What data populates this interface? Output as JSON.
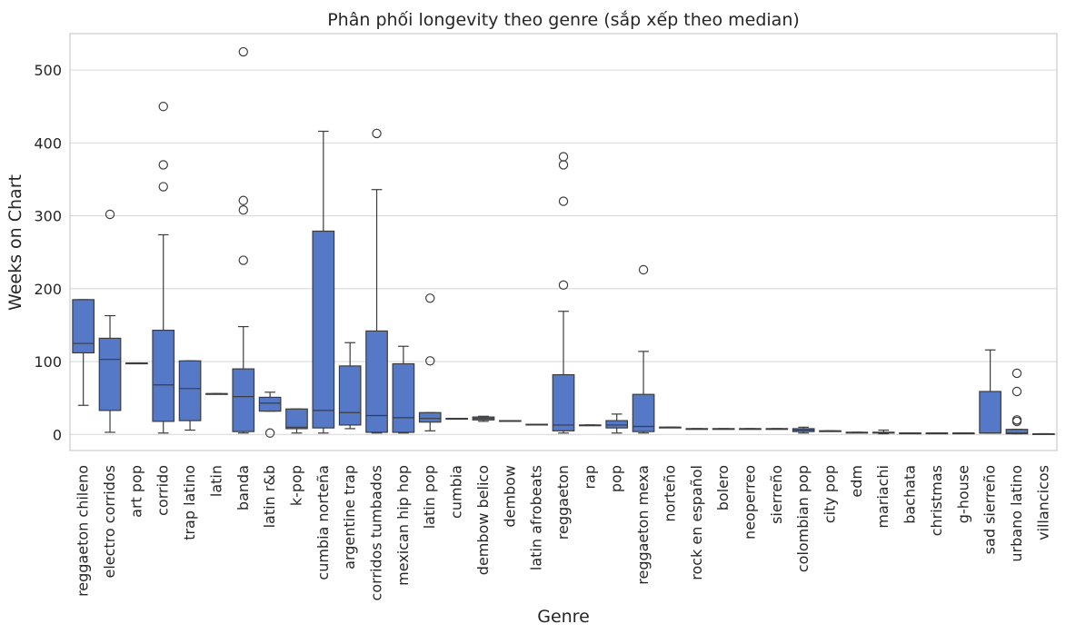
{
  "chart_data": {
    "type": "box",
    "title": "Phân phối longevity theo genre (sắp xếp theo median)",
    "xlabel": "Genre",
    "ylabel": "Weeks on Chart",
    "ylim": [
      -22,
      550
    ],
    "yticks": [
      0,
      100,
      200,
      300,
      400,
      500
    ],
    "grid": "horizontal",
    "box_color": "#5579c6",
    "line_color": "#3c3c3c",
    "categories": [
      "reggaeton chileno",
      "electro corridos",
      "art pop",
      "corrido",
      "trap latino",
      "latin",
      "banda",
      "latin r&b",
      "k-pop",
      "cumbia norteña",
      "argentine trap",
      "corridos tumbados",
      "mexican hip hop",
      "latin pop",
      "cumbia",
      "dembow belico",
      "dembow",
      "latin afrobeats",
      "reggaeton",
      "rap",
      "pop",
      "reggaeton mexa",
      "norteño",
      "rock en español",
      "bolero",
      "neoperreo",
      "sierreño",
      "colombian pop",
      "city pop",
      "edm",
      "mariachi",
      "bachata",
      "christmas",
      "g-house",
      "sad sierreño",
      "urbano latino",
      "villancicos"
    ],
    "boxes": [
      {
        "whislo": 40,
        "q1": 112,
        "med": 125,
        "q3": 185,
        "whishi": 185,
        "fliers": []
      },
      {
        "whislo": 3,
        "q1": 33,
        "med": 103,
        "q3": 132,
        "whishi": 163,
        "fliers": [
          302
        ]
      },
      {
        "whislo": 98,
        "q1": 98,
        "med": 98,
        "q3": 98,
        "whishi": 98,
        "fliers": []
      },
      {
        "whislo": 2,
        "q1": 18,
        "med": 68,
        "q3": 143,
        "whishi": 274,
        "fliers": [
          340,
          370,
          450
        ]
      },
      {
        "whislo": 6,
        "q1": 19,
        "med": 63,
        "q3": 101,
        "whishi": 101,
        "fliers": []
      },
      {
        "whislo": 56,
        "q1": 56,
        "med": 56,
        "q3": 56,
        "whishi": 56,
        "fliers": []
      },
      {
        "whislo": 2,
        "q1": 4,
        "med": 52,
        "q3": 90,
        "whishi": 148,
        "fliers": [
          239,
          308,
          321,
          525
        ]
      },
      {
        "whislo": 32,
        "q1": 32,
        "med": 43,
        "q3": 51,
        "whishi": 58,
        "fliers": [
          2
        ]
      },
      {
        "whislo": 2,
        "q1": 8,
        "med": 10,
        "q3": 35,
        "whishi": 35,
        "fliers": []
      },
      {
        "whislo": 2,
        "q1": 9,
        "med": 33,
        "q3": 279,
        "whishi": 416,
        "fliers": []
      },
      {
        "whislo": 8,
        "q1": 13,
        "med": 30,
        "q3": 94,
        "whishi": 126,
        "fliers": []
      },
      {
        "whislo": 2,
        "q1": 3,
        "med": 26,
        "q3": 142,
        "whishi": 336,
        "fliers": [
          413
        ]
      },
      {
        "whislo": 2,
        "q1": 3,
        "med": 23,
        "q3": 97,
        "whishi": 121,
        "fliers": []
      },
      {
        "whislo": 5,
        "q1": 17,
        "med": 22,
        "q3": 30,
        "whishi": 30,
        "fliers": [
          101,
          187
        ]
      },
      {
        "whislo": 22,
        "q1": 22,
        "med": 22,
        "q3": 22,
        "whishi": 22,
        "fliers": []
      },
      {
        "whislo": 18,
        "q1": 20,
        "med": 22,
        "q3": 24,
        "whishi": 25,
        "fliers": []
      },
      {
        "whislo": 19,
        "q1": 19,
        "med": 19,
        "q3": 19,
        "whishi": 19,
        "fliers": []
      },
      {
        "whislo": 14,
        "q1": 14,
        "med": 14,
        "q3": 14,
        "whishi": 14,
        "fliers": []
      },
      {
        "whislo": 2,
        "q1": 5,
        "med": 13,
        "q3": 82,
        "whishi": 169,
        "fliers": [
          205,
          320,
          370,
          381
        ]
      },
      {
        "whislo": 13,
        "q1": 13,
        "med": 13,
        "q3": 13,
        "whishi": 13,
        "fliers": []
      },
      {
        "whislo": 2,
        "q1": 9,
        "med": 13,
        "q3": 19,
        "whishi": 28,
        "fliers": []
      },
      {
        "whislo": 2,
        "q1": 4,
        "med": 11,
        "q3": 55,
        "whishi": 114,
        "fliers": [
          226
        ]
      },
      {
        "whislo": 10,
        "q1": 10,
        "med": 10,
        "q3": 10,
        "whishi": 10,
        "fliers": []
      },
      {
        "whislo": 8,
        "q1": 8,
        "med": 8,
        "q3": 8,
        "whishi": 8,
        "fliers": []
      },
      {
        "whislo": 8,
        "q1": 8,
        "med": 8,
        "q3": 8,
        "whishi": 8,
        "fliers": []
      },
      {
        "whislo": 8,
        "q1": 8,
        "med": 8,
        "q3": 8,
        "whishi": 8,
        "fliers": []
      },
      {
        "whislo": 8,
        "q1": 8,
        "med": 8,
        "q3": 8,
        "whishi": 8,
        "fliers": []
      },
      {
        "whislo": 2,
        "q1": 4,
        "med": 6,
        "q3": 8,
        "whishi": 10,
        "fliers": []
      },
      {
        "whislo": 5,
        "q1": 5,
        "med": 5,
        "q3": 5,
        "whishi": 5,
        "fliers": []
      },
      {
        "whislo": 3,
        "q1": 3,
        "med": 3,
        "q3": 3,
        "whishi": 3,
        "fliers": []
      },
      {
        "whislo": 1,
        "q1": 2,
        "med": 3,
        "q3": 3,
        "whishi": 6,
        "fliers": []
      },
      {
        "whislo": 2,
        "q1": 2,
        "med": 2,
        "q3": 2,
        "whishi": 2,
        "fliers": []
      },
      {
        "whislo": 2,
        "q1": 2,
        "med": 2,
        "q3": 2,
        "whishi": 2,
        "fliers": []
      },
      {
        "whislo": 2,
        "q1": 2,
        "med": 2,
        "q3": 2,
        "whishi": 2,
        "fliers": []
      },
      {
        "whislo": 2,
        "q1": 2,
        "med": 2,
        "q3": 59,
        "whishi": 116,
        "fliers": []
      },
      {
        "whislo": 1,
        "q1": 1,
        "med": 2,
        "q3": 7,
        "whishi": 7,
        "fliers": [
          18,
          20,
          59,
          84
        ]
      },
      {
        "whislo": 1,
        "q1": 1,
        "med": 1,
        "q3": 1,
        "whishi": 1,
        "fliers": []
      }
    ]
  }
}
